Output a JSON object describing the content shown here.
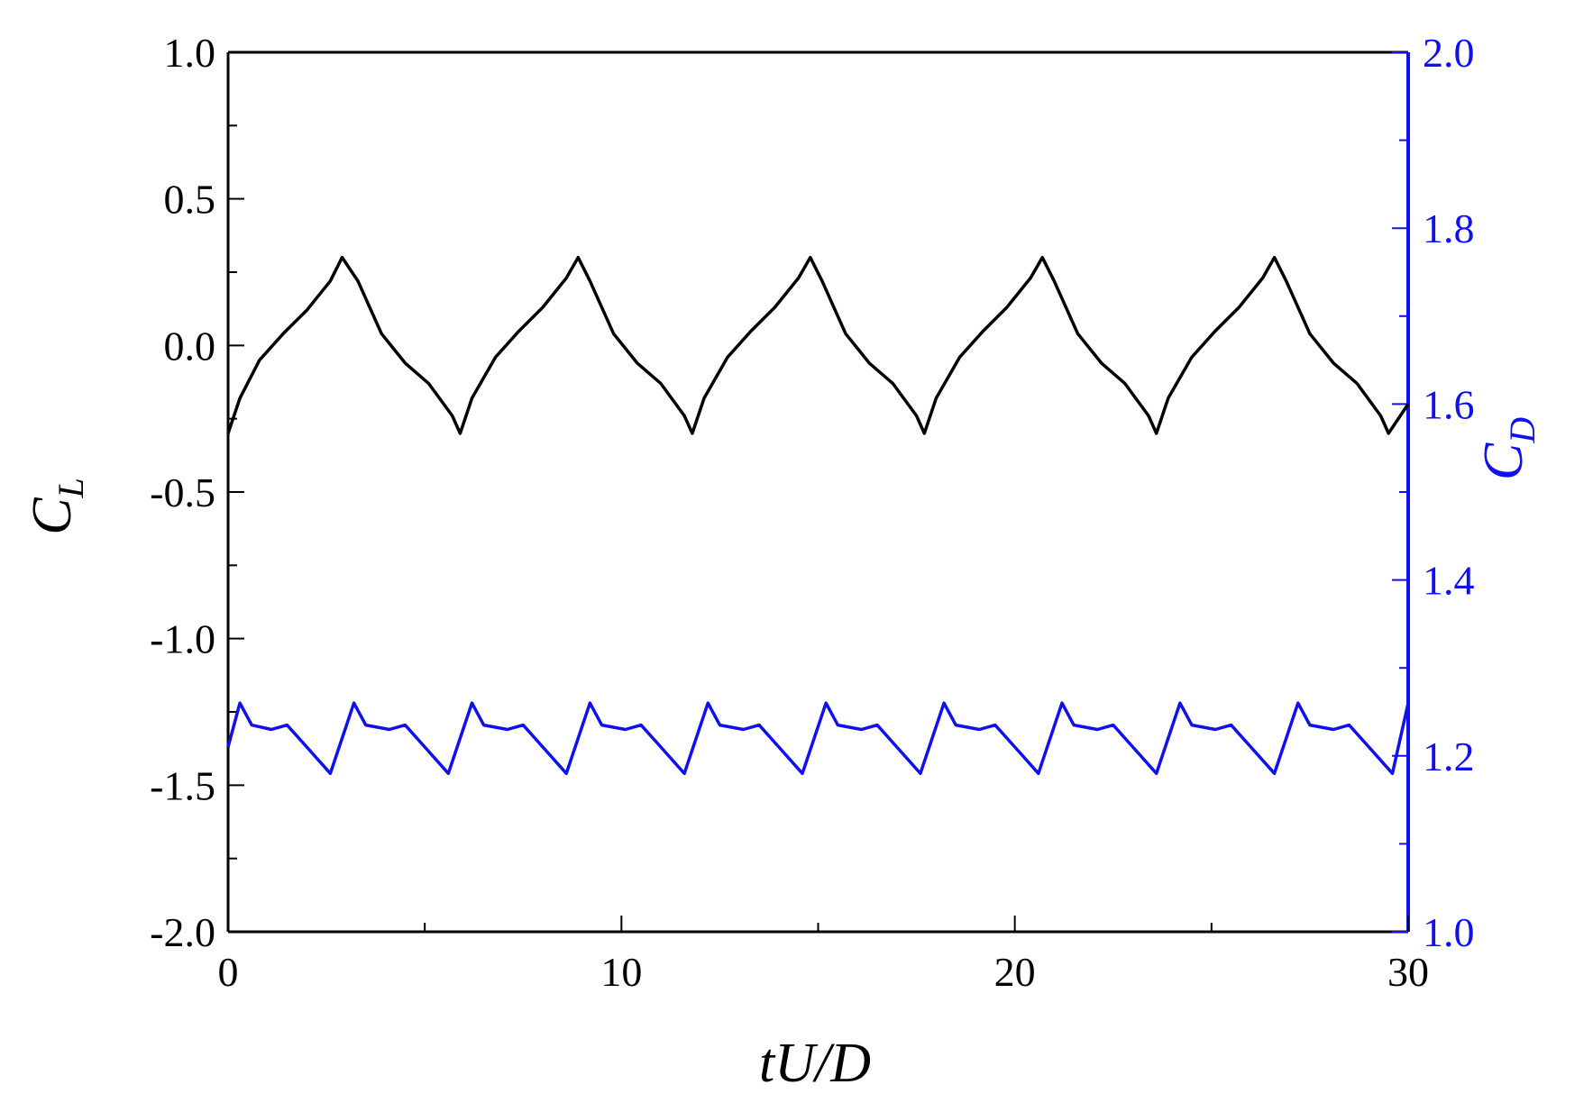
{
  "chart_data": {
    "type": "line",
    "title": "",
    "xlabel": "tU/D",
    "ylabel_left": {
      "main": "C",
      "sub": "L"
    },
    "ylabel_right": {
      "main": "C",
      "sub": "D"
    },
    "xlim": [
      0,
      30
    ],
    "ylim_left": [
      -2.0,
      1.0
    ],
    "ylim_right": [
      1.0,
      2.0
    ],
    "x_ticks": [
      0,
      10,
      20,
      30
    ],
    "x_tick_labels": [
      "0",
      "10",
      "20",
      "30"
    ],
    "y_left_ticks": [
      1.0,
      0.5,
      0.0,
      -0.5,
      -1.0,
      -1.5,
      -2.0
    ],
    "y_left_tick_labels": [
      "1.0",
      "0.5",
      "0.0",
      "-0.5",
      "-1.0",
      "-1.5",
      "-2.0"
    ],
    "y_right_ticks": [
      2.0,
      1.8,
      1.6,
      1.4,
      1.2,
      1.0
    ],
    "y_right_tick_labels": [
      "2.0",
      "1.8",
      "1.6",
      "1.4",
      "1.2",
      "1.0"
    ],
    "grid": false,
    "series": [
      {
        "axis": "left",
        "color": "#000000",
        "x": [
          0.0,
          0.3,
          0.8,
          1.4,
          2.0,
          2.6,
          2.9,
          3.3,
          3.9,
          4.5,
          5.1,
          5.7,
          5.9,
          6.2,
          6.8,
          7.4,
          8.0,
          8.6,
          8.9,
          9.2,
          9.8,
          10.4,
          11.0,
          11.6,
          11.8,
          12.1,
          12.7,
          13.3,
          13.9,
          14.5,
          14.8,
          15.1,
          15.7,
          16.3,
          16.9,
          17.5,
          17.7,
          18.0,
          18.6,
          19.2,
          19.8,
          20.4,
          20.7,
          21.0,
          21.6,
          22.2,
          22.8,
          23.4,
          23.6,
          23.9,
          24.5,
          25.1,
          25.7,
          26.3,
          26.6,
          26.9,
          27.5,
          28.1,
          28.7,
          29.3,
          29.5,
          30.0
        ],
        "y": [
          -0.3,
          -0.18,
          -0.05,
          0.04,
          0.12,
          0.22,
          0.3,
          0.22,
          0.04,
          -0.06,
          -0.13,
          -0.24,
          -0.3,
          -0.18,
          -0.04,
          0.05,
          0.13,
          0.23,
          0.3,
          0.22,
          0.04,
          -0.06,
          -0.13,
          -0.24,
          -0.3,
          -0.18,
          -0.04,
          0.05,
          0.13,
          0.23,
          0.3,
          0.22,
          0.04,
          -0.06,
          -0.13,
          -0.24,
          -0.3,
          -0.18,
          -0.04,
          0.05,
          0.13,
          0.23,
          0.3,
          0.22,
          0.04,
          -0.06,
          -0.13,
          -0.24,
          -0.3,
          -0.18,
          -0.04,
          0.05,
          0.13,
          0.23,
          0.3,
          0.22,
          0.04,
          -0.06,
          -0.13,
          -0.24,
          -0.3,
          -0.2
        ]
      },
      {
        "axis": "right",
        "color": "#1010ee",
        "x": [
          0.0,
          0.3,
          0.6,
          1.1,
          1.5,
          2.0,
          2.6,
          3.2,
          3.5,
          4.1,
          4.5,
          5.0,
          5.6,
          6.2,
          6.5,
          7.1,
          7.5,
          8.0,
          8.6,
          9.2,
          9.5,
          10.1,
          10.5,
          11.0,
          11.6,
          12.2,
          12.5,
          13.1,
          13.5,
          14.0,
          14.6,
          15.2,
          15.5,
          16.1,
          16.5,
          17.0,
          17.6,
          18.2,
          18.5,
          19.1,
          19.5,
          20.0,
          20.6,
          21.2,
          21.5,
          22.1,
          22.5,
          23.0,
          23.6,
          24.2,
          24.5,
          25.1,
          25.5,
          26.0,
          26.6,
          27.2,
          27.5,
          28.1,
          28.5,
          29.0,
          29.6,
          30.0
        ],
        "y": [
          1.21,
          1.26,
          1.235,
          1.23,
          1.235,
          1.21,
          1.18,
          1.26,
          1.235,
          1.23,
          1.235,
          1.21,
          1.18,
          1.26,
          1.235,
          1.23,
          1.235,
          1.21,
          1.18,
          1.26,
          1.235,
          1.23,
          1.235,
          1.21,
          1.18,
          1.26,
          1.235,
          1.23,
          1.235,
          1.21,
          1.18,
          1.26,
          1.235,
          1.23,
          1.235,
          1.21,
          1.18,
          1.26,
          1.235,
          1.23,
          1.235,
          1.21,
          1.18,
          1.26,
          1.235,
          1.23,
          1.235,
          1.21,
          1.18,
          1.26,
          1.235,
          1.23,
          1.235,
          1.21,
          1.18,
          1.26,
          1.235,
          1.23,
          1.235,
          1.21,
          1.18,
          1.26
        ]
      }
    ],
    "colors": {
      "left_axis": "#000000",
      "right_axis": "#1010ee"
    }
  }
}
